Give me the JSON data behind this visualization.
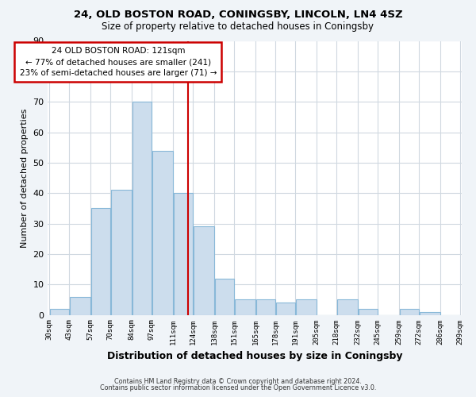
{
  "title1": "24, OLD BOSTON ROAD, CONINGSBY, LINCOLN, LN4 4SZ",
  "title2": "Size of property relative to detached houses in Coningsby",
  "xlabel": "Distribution of detached houses by size in Coningsby",
  "ylabel": "Number of detached properties",
  "bar_color": "#ccdded",
  "bar_edge_color": "#88b8d8",
  "reference_line_x": 121,
  "reference_line_color": "#cc0000",
  "annotation_title": "24 OLD BOSTON ROAD: 121sqm",
  "annotation_line1": "← 77% of detached houses are smaller (241)",
  "annotation_line2": "23% of semi-detached houses are larger (71) →",
  "annotation_box_color": "#ffffff",
  "annotation_box_edge_color": "#cc0000",
  "bin_edges": [
    30,
    43,
    57,
    70,
    84,
    97,
    111,
    124,
    138,
    151,
    165,
    178,
    191,
    205,
    218,
    232,
    245,
    259,
    272,
    286,
    299
  ],
  "bin_heights": [
    2,
    6,
    35,
    41,
    70,
    54,
    40,
    29,
    12,
    5,
    5,
    4,
    5,
    0,
    5,
    2,
    0,
    2,
    1,
    0
  ],
  "ylim": [
    0,
    90
  ],
  "yticks": [
    0,
    10,
    20,
    30,
    40,
    50,
    60,
    70,
    80,
    90
  ],
  "footer1": "Contains HM Land Registry data © Crown copyright and database right 2024.",
  "footer2": "Contains public sector information licensed under the Open Government Licence v3.0.",
  "background_color": "#f0f4f8",
  "plot_background_color": "#ffffff",
  "grid_color": "#d0d8e0"
}
